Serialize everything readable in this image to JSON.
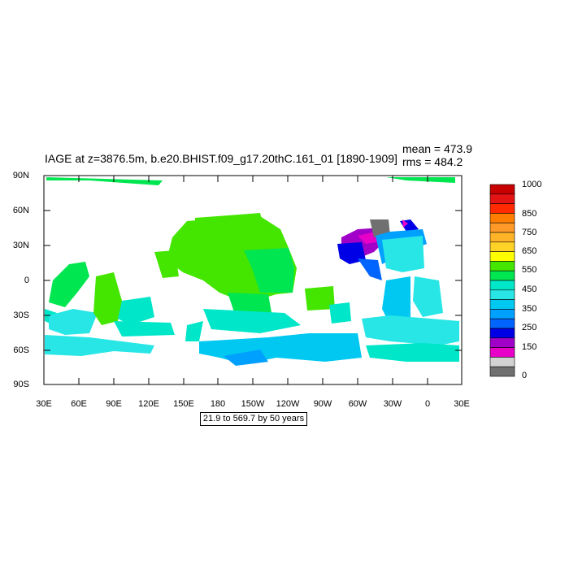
{
  "map": {
    "title": "IAGE at z=3876.5m, b.e20.BHIST.f09_g17.20thC.161_01 [1890-1909]",
    "mean": "mean = 473.9",
    "rms": "rms = 484.2",
    "range_note": "21.9 to 569.7 by 50 years",
    "lat_labels": [
      "90N",
      "60N",
      "30N",
      "0",
      "30S",
      "60S",
      "90S"
    ],
    "lon_labels": [
      "30E",
      "60E",
      "90E",
      "120E",
      "150E",
      "180",
      "150W",
      "120W",
      "90W",
      "60W",
      "30W",
      "0",
      "30E"
    ]
  },
  "colorbar": {
    "labels": [
      "1000",
      "850",
      "750",
      "650",
      "550",
      "450",
      "350",
      "250",
      "150",
      "0"
    ],
    "colors": [
      "#c80000",
      "#e41414",
      "#ff2a00",
      "#ff7e00",
      "#ff9a28",
      "#ffb428",
      "#ffd228",
      "#ffff00",
      "#44e600",
      "#00e650",
      "#00e6c8",
      "#28e6e6",
      "#00c8f0",
      "#00a0ff",
      "#0064ff",
      "#0000e6",
      "#a000c8",
      "#e600c8",
      "#d2d2d2",
      "#707070"
    ]
  },
  "legend_colors": {
    "green_550": "#44e600",
    "green_500": "#00e650",
    "cyan_450": "#00e6c8",
    "cyan_400": "#28e6e6",
    "blue_350": "#00c8f0",
    "blue_300": "#00a0ff",
    "blue_250": "#0064ff",
    "navy_200": "#0000e6",
    "purple_150": "#a000c8",
    "magenta_100": "#e600c8",
    "gray": "#707070"
  }
}
